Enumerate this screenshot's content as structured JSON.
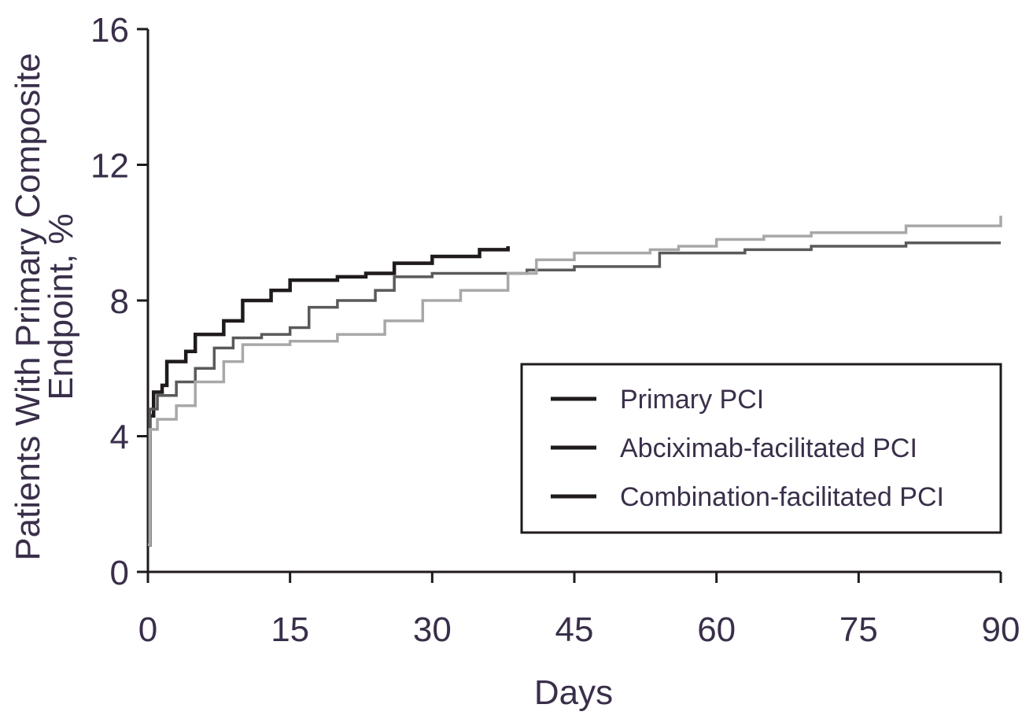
{
  "chart_data": {
    "type": "line",
    "xlabel": "Days",
    "ylabel_lines": [
      "Patients With Primary Composite",
      "Endpoint, %"
    ],
    "xlim": [
      0,
      90
    ],
    "ylim": [
      0,
      16
    ],
    "x_ticks": [
      0,
      15,
      30,
      45,
      60,
      75,
      90
    ],
    "y_ticks": [
      0,
      4,
      8,
      12,
      16
    ],
    "x_tick_labels": [
      "0",
      "15",
      "30",
      "45",
      "60",
      "75",
      "90"
    ],
    "y_tick_labels": [
      "0",
      "4",
      "8",
      "12",
      "16"
    ],
    "grid": false,
    "legend_position": "lower-right",
    "series": [
      {
        "name": "Primary PCI",
        "color": "#1f1a1c",
        "points": [
          [
            0,
            0.8
          ],
          [
            0.2,
            4.6
          ],
          [
            0.6,
            5.3
          ],
          [
            1.5,
            5.5
          ],
          [
            2,
            6.2
          ],
          [
            4,
            6.5
          ],
          [
            5,
            7.0
          ],
          [
            8,
            7.4
          ],
          [
            10,
            8.0
          ],
          [
            13,
            8.3
          ],
          [
            15,
            8.6
          ],
          [
            20,
            8.7
          ],
          [
            23,
            8.8
          ],
          [
            26,
            9.1
          ],
          [
            30,
            9.3
          ],
          [
            35,
            9.5
          ],
          [
            38,
            9.6
          ]
        ]
      },
      {
        "name": "Abciximab-facilitated PCI",
        "color": "#5a5a5a",
        "points": [
          [
            0,
            0.8
          ],
          [
            0.2,
            4.8
          ],
          [
            1,
            5.2
          ],
          [
            3,
            5.6
          ],
          [
            5,
            6.0
          ],
          [
            7,
            6.6
          ],
          [
            9,
            6.9
          ],
          [
            12,
            7.0
          ],
          [
            15,
            7.2
          ],
          [
            17,
            7.8
          ],
          [
            20,
            8.0
          ],
          [
            24,
            8.3
          ],
          [
            26,
            8.7
          ],
          [
            30,
            8.8
          ],
          [
            40,
            8.9
          ],
          [
            45,
            9.0
          ],
          [
            53,
            9.0
          ],
          [
            54,
            9.4
          ],
          [
            60,
            9.4
          ],
          [
            63,
            9.5
          ],
          [
            70,
            9.6
          ],
          [
            80,
            9.7
          ],
          [
            90,
            9.7
          ]
        ]
      },
      {
        "name": "Combination-facilitated PCI",
        "color": "#a8a8a8",
        "points": [
          [
            0,
            0.8
          ],
          [
            0.2,
            4.2
          ],
          [
            1,
            4.5
          ],
          [
            3,
            4.9
          ],
          [
            5,
            5.6
          ],
          [
            8,
            6.2
          ],
          [
            10,
            6.7
          ],
          [
            15,
            6.8
          ],
          [
            20,
            7.0
          ],
          [
            25,
            7.4
          ],
          [
            29,
            8.0
          ],
          [
            33,
            8.3
          ],
          [
            38,
            8.8
          ],
          [
            41,
            9.2
          ],
          [
            45,
            9.4
          ],
          [
            53,
            9.5
          ],
          [
            56,
            9.6
          ],
          [
            60,
            9.8
          ],
          [
            65,
            9.9
          ],
          [
            70,
            10.0
          ],
          [
            80,
            10.2
          ],
          [
            90,
            10.5
          ]
        ]
      }
    ]
  }
}
